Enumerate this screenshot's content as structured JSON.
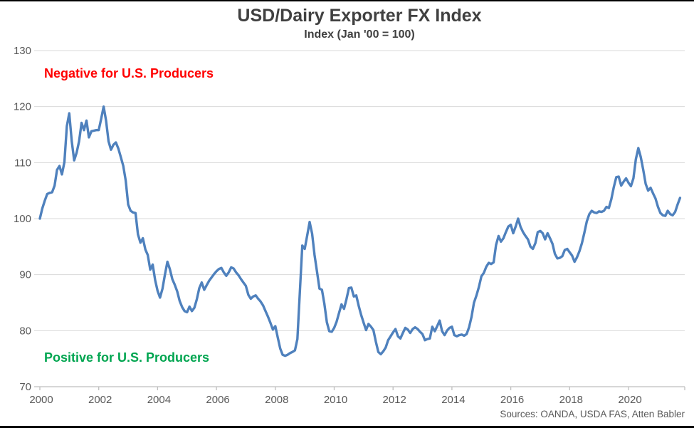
{
  "title": "USD/Dairy Exporter FX Index",
  "subtitle": "Index (Jan '00 = 100)",
  "annotations": {
    "negative": "Negative for U.S. Producers",
    "positive": "Positive for U.S. Producers"
  },
  "source": "Sources: OANDA, USDA FAS, Atten Babler",
  "colors": {
    "line": "#4F81BD",
    "negative_text": "#FF0000",
    "positive_text": "#00A550",
    "title_text": "#404040",
    "axis_text": "#595959",
    "gridline": "#D9D9D9",
    "axis_line": "#BFBFBF"
  },
  "chart_data": {
    "type": "line",
    "title": "USD/Dairy Exporter FX Index",
    "subtitle": "Index (Jan '00 = 100)",
    "xlabel": "",
    "ylabel": "",
    "ylim": [
      70,
      130
    ],
    "yticks": [
      130,
      120,
      110,
      100,
      90,
      80,
      70
    ],
    "xticks": [
      2000,
      2002,
      2004,
      2006,
      2008,
      2010,
      2012,
      2014,
      2016,
      2018,
      2020
    ],
    "grid": "horizontal",
    "legend": "none",
    "x_start": "2000-01",
    "x_end": "2021-10",
    "frequency": "monthly",
    "series": [
      {
        "name": "USD/Dairy Exporter FX Index",
        "values": [
          100.0,
          101.8,
          103.2,
          104.4,
          104.6,
          104.7,
          105.9,
          108.7,
          109.4,
          107.9,
          110.1,
          116.5,
          118.8,
          113.8,
          110.4,
          111.8,
          113.8,
          117.1,
          115.8,
          117.5,
          114.5,
          115.6,
          115.7,
          115.8,
          115.8,
          117.8,
          120.0,
          117.5,
          113.8,
          112.3,
          113.2,
          113.6,
          112.5,
          111.0,
          109.4,
          106.8,
          102.5,
          101.4,
          101.1,
          101.0,
          97.2,
          95.7,
          96.5,
          94.5,
          93.5,
          90.9,
          91.8,
          89.0,
          87.1,
          85.9,
          87.5,
          90.0,
          92.3,
          91.0,
          89.2,
          88.2,
          87.0,
          85.3,
          84.2,
          83.5,
          83.3,
          84.3,
          83.5,
          84.1,
          85.6,
          87.6,
          88.6,
          87.3,
          88.1,
          88.9,
          89.5,
          90.1,
          90.6,
          91.0,
          91.2,
          90.4,
          89.8,
          90.4,
          91.3,
          91.1,
          90.4,
          89.9,
          89.2,
          88.6,
          88.0,
          86.4,
          85.7,
          86.1,
          86.3,
          85.7,
          85.2,
          84.5,
          83.5,
          82.5,
          81.4,
          80.2,
          80.8,
          78.8,
          76.8,
          75.7,
          75.5,
          75.7,
          76.0,
          76.2,
          76.5,
          78.5,
          87.0,
          95.2,
          94.6,
          97.0,
          99.4,
          97.3,
          93.5,
          90.5,
          87.5,
          87.3,
          84.8,
          81.5,
          79.9,
          79.8,
          80.5,
          81.6,
          83.2,
          84.7,
          83.9,
          85.6,
          87.6,
          87.7,
          86.1,
          86.3,
          84.4,
          82.8,
          81.4,
          80.1,
          81.2,
          80.7,
          80.1,
          78.0,
          76.2,
          75.8,
          76.3,
          77.0,
          78.3,
          79.0,
          79.7,
          80.3,
          79.0,
          78.6,
          79.6,
          80.5,
          80.2,
          79.6,
          80.3,
          80.6,
          80.3,
          79.8,
          79.4,
          78.3,
          78.5,
          78.6,
          80.7,
          79.9,
          80.8,
          81.8,
          79.9,
          79.2,
          80.0,
          80.5,
          80.7,
          79.2,
          79.0,
          79.2,
          79.3,
          79.1,
          79.4,
          80.6,
          82.5,
          85.0,
          86.3,
          87.8,
          89.7,
          90.3,
          91.4,
          92.1,
          91.9,
          92.2,
          95.3,
          96.9,
          95.9,
          96.5,
          97.6,
          98.6,
          98.9,
          97.4,
          98.6,
          100.0,
          98.5,
          97.6,
          96.9,
          96.3,
          95.0,
          94.6,
          95.6,
          97.6,
          97.8,
          97.4,
          96.3,
          97.4,
          96.5,
          95.5,
          93.7,
          92.9,
          93.0,
          93.3,
          94.4,
          94.6,
          94.0,
          93.4,
          92.3,
          93.1,
          94.2,
          95.6,
          97.5,
          99.5,
          100.8,
          101.4,
          101.1,
          101.0,
          101.3,
          101.2,
          101.4,
          102.1,
          101.9,
          103.5,
          105.6,
          107.4,
          107.5,
          105.9,
          106.6,
          107.2,
          106.4,
          105.8,
          107.2,
          110.6,
          112.6,
          111.0,
          108.7,
          106.2,
          105.0,
          105.5,
          104.5,
          103.6,
          102.1,
          101.0,
          100.6,
          100.5,
          101.4,
          100.8,
          100.6,
          101.2,
          102.5,
          103.7
        ]
      }
    ]
  }
}
